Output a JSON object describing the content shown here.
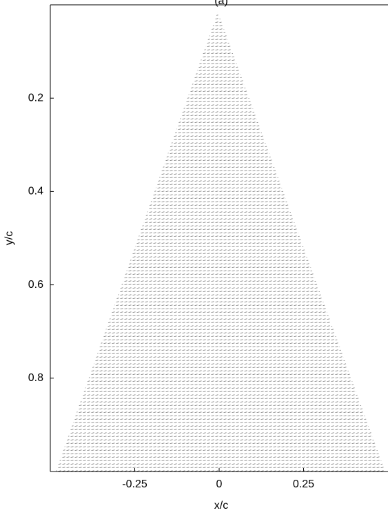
{
  "chart_data": {
    "type": "quiver",
    "title": "(a)",
    "x_label": "x/c",
    "y_label": "y/c",
    "xlim": [
      -0.5,
      0.5
    ],
    "xticks": [
      -0.25,
      0,
      0.25
    ],
    "ylim": [
      0,
      1
    ],
    "yticks": [
      0.2,
      0.4,
      0.6,
      0.8
    ],
    "y_reversed": true,
    "color": "#000000"
  }
}
